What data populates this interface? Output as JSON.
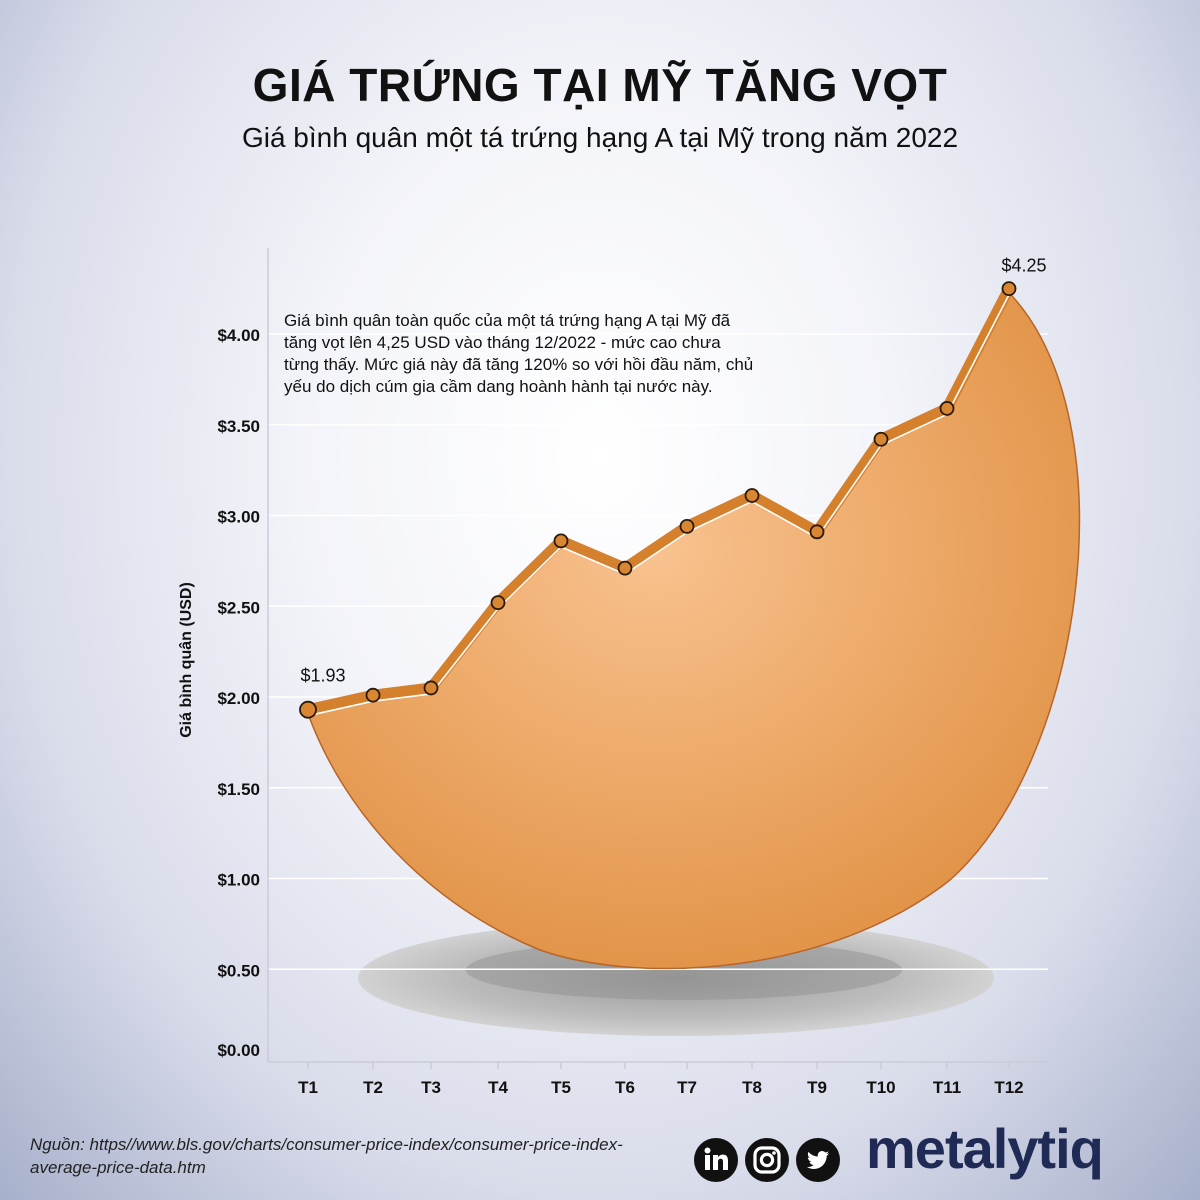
{
  "header": {
    "title": "GIÁ TRỨNG TẠI MỸ TĂNG VỌT",
    "subtitle": "Giá bình quân một tá trứng hạng A tại Mỹ trong năm 2022"
  },
  "annotation": "Giá bình quân toàn quốc của một tá trứng hạng A tại Mỹ đã tăng vọt lên 4,25 USD vào tháng 12/2022 - mức cao chưa từng thấy. Mức giá này đã tăng 120% so với hồi đầu năm, chủ yếu do dịch cúm gia cầm dang hoành hành tại nước này.",
  "footer": {
    "source": "Nguồn: https//www.bls.gov/charts/consumer-price-index/consumer-price-index-average-price-data.htm",
    "social": [
      {
        "name": "linkedin-icon"
      },
      {
        "name": "instagram-icon"
      },
      {
        "name": "twitter-icon"
      }
    ],
    "brand": "metalytiq"
  },
  "colors": {
    "line": "#d4802c",
    "fill_light": "#f9c28f",
    "fill_dark": "#dd8b3a",
    "marker": "#d98632"
  },
  "chart_data": {
    "type": "line",
    "ylabel": "Giá bình quân (USD)",
    "xlabel": "",
    "ylim": [
      0,
      4.4
    ],
    "yticks": [
      0,
      0.5,
      1.0,
      1.5,
      2.0,
      2.5,
      3.0,
      3.5,
      4.0
    ],
    "ytick_labels": [
      "$0.00",
      "$0.50",
      "$1.00",
      "$1.50",
      "$2.00",
      "$2.50",
      "$3.00",
      "$3.50",
      "$4.00"
    ],
    "categories": [
      "T1",
      "T2",
      "T3",
      "T4",
      "T5",
      "T6",
      "T7",
      "T8",
      "T9",
      "T10",
      "T11",
      "T12"
    ],
    "values": [
      1.93,
      2.01,
      2.05,
      2.52,
      2.86,
      2.71,
      2.94,
      3.11,
      2.91,
      3.42,
      3.59,
      4.25
    ],
    "data_labels": [
      {
        "index": 0,
        "text": "$1.93"
      },
      {
        "index": 11,
        "text": "$4.25"
      }
    ],
    "grid": true
  }
}
